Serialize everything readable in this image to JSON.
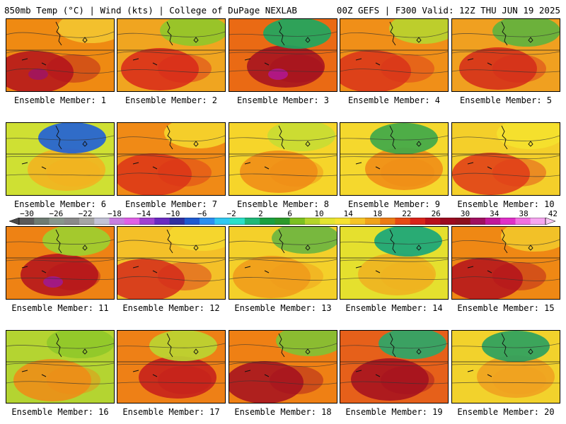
{
  "header": {
    "left": "850mb Temp (°C) | Wind (kts) | College of DuPage NEXLAB",
    "right": "00Z GEFS | F300 Valid: 12Z THU JUN 19 2025"
  },
  "member_prefix": "Ensemble Member: ",
  "members": [
    {
      "label": "Ensemble Member: 1",
      "base": "#ef8a12",
      "hot": "#b3121c",
      "cool": "#f3c531",
      "hot_extra": "#a01560"
    },
    {
      "label": "Ensemble Member: 2",
      "base": "#f0a520",
      "hot": "#d8281a",
      "cool": "#8fc82a",
      "hot_extra": ""
    },
    {
      "label": "Ensemble Member: 3",
      "base": "#ea6a14",
      "hot": "#a30f20",
      "cool": "#1ba860",
      "hot_extra": "#b0178e"
    },
    {
      "label": "Ensemble Member: 4",
      "base": "#f08f18",
      "hot": "#d9341a",
      "cool": "#b7d52f",
      "hot_extra": ""
    },
    {
      "label": "Ensemble Member: 5",
      "base": "#f0a020",
      "hot": "#d42a1a",
      "cool": "#5db33e",
      "hot_extra": ""
    },
    {
      "label": "Ensemble Member: 6",
      "base": "#cfe033",
      "hot": "#f3b020",
      "cool": "#1e5fd8",
      "hot_extra": ""
    },
    {
      "label": "Ensemble Member: 7",
      "base": "#f08a16",
      "hot": "#dc3418",
      "cool": "#f5d52c",
      "hot_extra": ""
    },
    {
      "label": "Ensemble Member: 8",
      "base": "#f6d52a",
      "hot": "#f08a16",
      "cool": "#c8dd33",
      "hot_extra": ""
    },
    {
      "label": "Ensemble Member: 9",
      "base": "#f5d82d",
      "hot": "#f08a16",
      "cool": "#3ca84a",
      "hot_extra": ""
    },
    {
      "label": "Ensemble Member: 10",
      "base": "#f4cf2a",
      "hot": "#df3a18",
      "cool": "#f5e12d",
      "hot_extra": ""
    },
    {
      "label": "Ensemble Member: 11",
      "base": "#ee8214",
      "hot": "#b3121c",
      "cool": "#9bd030",
      "hot_extra": "#a01a8e"
    },
    {
      "label": "Ensemble Member: 12",
      "base": "#f4c028",
      "hot": "#d42a1a",
      "cool": "#f5d82d",
      "hot_extra": ""
    },
    {
      "label": "Ensemble Member: 13",
      "base": "#f4d02a",
      "hot": "#f09a1a",
      "cool": "#6ab540",
      "hot_extra": ""
    },
    {
      "label": "Ensemble Member: 14",
      "base": "#e5e02e",
      "hot": "#f0b020",
      "cool": "#14a57c",
      "hot_extra": ""
    },
    {
      "label": "Ensemble Member: 15",
      "base": "#ef8814",
      "hot": "#b3121c",
      "cool": "#f2c82a",
      "hot_extra": ""
    },
    {
      "label": "Ensemble Member: 16",
      "base": "#b4d431",
      "hot": "#f08a16",
      "cool": "#8fc82a",
      "hot_extra": ""
    },
    {
      "label": "Ensemble Member: 17",
      "base": "#ee8016",
      "hot": "#c41c1c",
      "cool": "#b9d632",
      "hot_extra": ""
    },
    {
      "label": "Ensemble Member: 18",
      "base": "#ef8014",
      "hot": "#a30f20",
      "cool": "#7fc234",
      "hot_extra": ""
    },
    {
      "label": "Ensemble Member: 19",
      "base": "#e6601a",
      "hot": "#a30f20",
      "cool": "#28a86a",
      "hot_extra": ""
    },
    {
      "label": "Ensemble Member: 20",
      "base": "#f2d22c",
      "hot": "#f0a020",
      "cool": "#28a060",
      "hot_extra": ""
    }
  ],
  "colorbar": {
    "tick_labels": [
      "−30",
      "−26",
      "−22",
      "−18",
      "−14",
      "−10",
      "−6",
      "−2",
      "2",
      "6",
      "10",
      "14",
      "18",
      "22",
      "26",
      "30",
      "34",
      "38",
      "42"
    ],
    "colors": [
      "#5a5a5a",
      "#6e7b72",
      "#88968c",
      "#8a8a8a",
      "#a5a5a5",
      "#c2c2d6",
      "#c87ee0",
      "#e060e6",
      "#a040d0",
      "#6a2ac0",
      "#3030a0",
      "#1f5ad0",
      "#2b8ff0",
      "#30c8f0",
      "#2ae0c8",
      "#20b878",
      "#1aa040",
      "#2c9a2a",
      "#7cc020",
      "#b4d42a",
      "#e4e430",
      "#f6e230",
      "#f6c426",
      "#f0a21a",
      "#ec7a14",
      "#e64a14",
      "#d8241a",
      "#b8101c",
      "#9c0a20",
      "#8c1020",
      "#a01060",
      "#c0189a",
      "#e030c8",
      "#f070e0",
      "#f6a6f0"
    ],
    "left_arrow_color": "#4a4a4a",
    "right_arrow_color": "#f8c8f4"
  }
}
